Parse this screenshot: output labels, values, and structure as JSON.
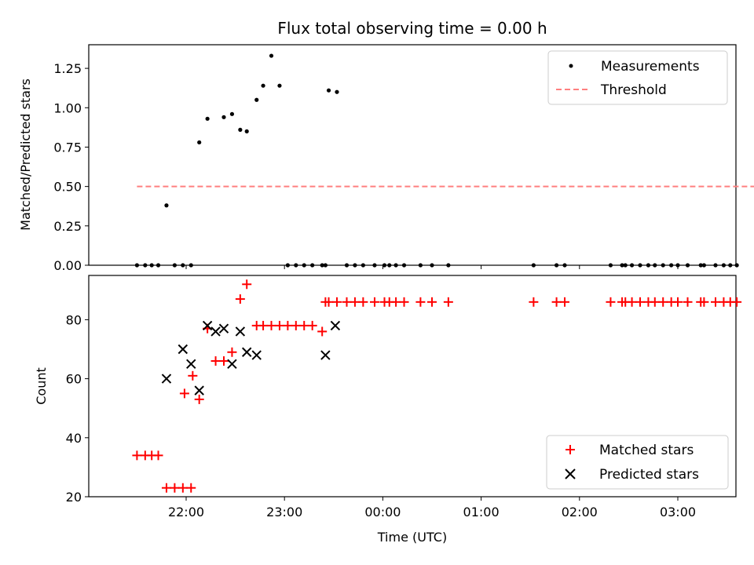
{
  "chart_data": [
    {
      "type": "scatter",
      "title": "Flux total observing time = 0.00 h",
      "ylabel": "Matched/Predicted stars",
      "xlabel": "",
      "ylim": [
        0,
        1.4
      ],
      "yticks": [
        "0.00",
        "0.25",
        "0.50",
        "0.75",
        "1.00",
        "1.25"
      ],
      "legend_position": "top-right",
      "series": [
        {
          "name": "Measurements",
          "color": "#000000",
          "marker": "dot",
          "x": [
            "21:30",
            "21:35",
            "21:39",
            "21:43",
            "21:48",
            "21:53",
            "21:58",
            "22:03",
            "22:08",
            "22:13",
            "22:23",
            "22:28",
            "22:33",
            "22:37",
            "22:43",
            "22:47",
            "22:52",
            "22:57",
            "23:02",
            "23:07",
            "23:12",
            "23:17",
            "23:23",
            "23:25",
            "23:27",
            "23:32",
            "23:38",
            "23:43",
            "23:48",
            "23:55",
            "24:01",
            "24:04",
            "24:08",
            "24:13",
            "24:23",
            "24:30",
            "24:40",
            "25:32",
            "25:46",
            "25:51",
            "26:19",
            "26:26",
            "26:28",
            "26:32",
            "26:37",
            "26:42",
            "26:46",
            "26:51",
            "26:56",
            "27:00",
            "27:06",
            "27:14",
            "27:16",
            "27:23",
            "27:28",
            "27:32",
            "27:36",
            "27:50"
          ],
          "y": [
            0,
            0,
            0,
            0,
            0.38,
            0,
            0,
            0,
            0.78,
            0.93,
            0.94,
            0.96,
            0.86,
            0.85,
            1.05,
            1.14,
            1.33,
            1.14,
            0,
            0,
            0,
            0,
            0,
            0,
            1.11,
            1.1,
            0,
            0,
            0,
            0,
            0,
            0,
            0,
            0,
            0,
            0,
            0,
            0,
            0,
            0,
            0,
            0,
            0,
            0,
            0,
            0,
            0,
            0,
            0,
            0,
            0,
            0,
            0,
            0,
            0,
            0,
            0,
            0
          ]
        },
        {
          "name": "Threshold",
          "color": "#ff7f7f",
          "style": "dashed",
          "x": [
            "21:30",
            "27:50"
          ],
          "y": [
            0.5,
            0.5
          ]
        }
      ]
    },
    {
      "type": "scatter",
      "title": "",
      "ylabel": "Count",
      "xlabel": "Time (UTC)",
      "ylim": [
        20,
        95
      ],
      "yticks": [
        "20",
        "40",
        "60",
        "80"
      ],
      "xticks": [
        "22:00",
        "23:00",
        "00:00",
        "01:00",
        "02:00",
        "03:00"
      ],
      "legend_position": "bottom-right",
      "series": [
        {
          "name": "Matched stars",
          "color": "#ff0000",
          "marker": "plus",
          "x": [
            "21:30",
            "21:35",
            "21:39",
            "21:43",
            "21:48",
            "21:53",
            "21:58",
            "22:03",
            "21:59",
            "22:04",
            "22:08",
            "22:13",
            "22:18",
            "22:23",
            "22:28",
            "22:33",
            "22:37",
            "22:43",
            "22:47",
            "22:52",
            "22:57",
            "23:02",
            "23:07",
            "23:12",
            "23:17",
            "23:23",
            "23:25",
            "23:27",
            "23:32",
            "23:38",
            "23:43",
            "23:48",
            "23:55",
            "24:01",
            "24:04",
            "24:08",
            "24:13",
            "24:23",
            "24:30",
            "24:40",
            "25:32",
            "25:46",
            "25:51",
            "26:19",
            "26:26",
            "26:28",
            "26:32",
            "26:37",
            "26:42",
            "26:46",
            "26:51",
            "26:56",
            "27:00",
            "27:06",
            "27:14",
            "27:16",
            "27:23",
            "27:28",
            "27:32",
            "27:36",
            "27:50"
          ],
          "y": [
            34,
            34,
            34,
            34,
            23,
            23,
            23,
            23,
            55,
            61,
            53,
            77,
            66,
            66,
            69,
            87,
            92,
            78,
            78,
            78,
            78,
            78,
            78,
            78,
            78,
            76,
            86,
            86,
            86,
            86,
            86,
            86,
            86,
            86,
            86,
            86,
            86,
            86,
            86,
            86,
            86,
            86,
            86,
            86,
            86,
            86,
            86,
            86,
            86,
            86,
            86,
            86,
            86,
            86,
            86,
            86,
            86,
            86,
            86,
            86,
            86
          ]
        },
        {
          "name": "Predicted stars",
          "color": "#000000",
          "marker": "x",
          "x": [
            "21:48",
            "21:58",
            "22:03",
            "22:08",
            "22:13",
            "22:18",
            "22:23",
            "22:28",
            "22:33",
            "22:37",
            "22:43",
            "23:25",
            "23:31"
          ],
          "y": [
            60,
            70,
            65,
            56,
            78,
            76,
            77,
            65,
            76,
            69,
            68,
            68,
            78
          ]
        }
      ]
    }
  ]
}
